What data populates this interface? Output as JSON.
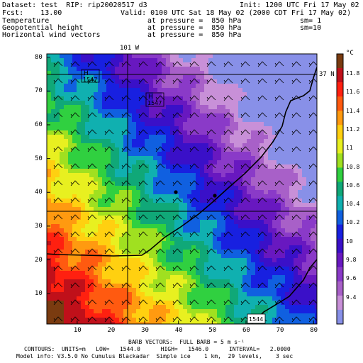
{
  "header": {
    "line1_left": "Dataset: test  RIP: rip20020517 d3",
    "line1_right": "Init: 1200 UTC Fri 17 May 02",
    "line2_left": "Fcst:    13.00",
    "line2_right": "Valid: 0100 UTC Sat 18 May 02 (2000 CDT Fri 17 May 02)",
    "rows": [
      {
        "field": "Temperature",
        "pressure": "at pressure =  850 hPa",
        "sm": "sm= 1"
      },
      {
        "field": "Geopotential height",
        "pressure": "at pressure =  850 hPa",
        "sm": "sm=10"
      },
      {
        "field": "Horizontal wind vectors",
        "pressure": "at pressure =  850 hPa",
        "sm": ""
      }
    ]
  },
  "map": {
    "meridian_label": "101 W",
    "parallel_label": "37 N",
    "x_ticks": [
      "10",
      "20",
      "30",
      "40",
      "50",
      "60",
      "70",
      "80"
    ],
    "y_ticks": [
      "10",
      "20",
      "30",
      "40",
      "50",
      "60",
      "70",
      "80"
    ],
    "height_labels": [
      {
        "letter": "H",
        "value": "1547"
      },
      {
        "letter": "H",
        "value": "1547"
      },
      {
        "letter": "L",
        "value": "1544"
      }
    ]
  },
  "colorbar": {
    "unit": "°C",
    "labels": [
      "11.8",
      "11.6",
      "11.4",
      "11.2",
      "11",
      "10.8",
      "10.6",
      "10.4",
      "10.2",
      "10",
      "9.8",
      "9.6",
      "9.4"
    ],
    "colors": [
      "#7a3b10",
      "#c0101a",
      "#ff2010",
      "#ff5a10",
      "#ff9a10",
      "#ffd010",
      "#e8f020",
      "#a0e020",
      "#30d040",
      "#10a878",
      "#10b0b0",
      "#1060e0",
      "#1820e0",
      "#3a10c8",
      "#6818c0",
      "#8a3ac8",
      "#a860c8",
      "#c890d8",
      "#8890e8"
    ]
  },
  "footer": {
    "barb": "BARB VECTORS:  FULL BARB = 5 m s⁻¹",
    "contours": "CONTOURS:  UNITS=m   LOW=   1544.0      HIGH=   1546.0      INTERVAL=   2.0000",
    "model": "Model info: V3.5.0 No Cumulus Blackadar  Simple ice    1 km,  29 levels,    3 sec"
  }
}
